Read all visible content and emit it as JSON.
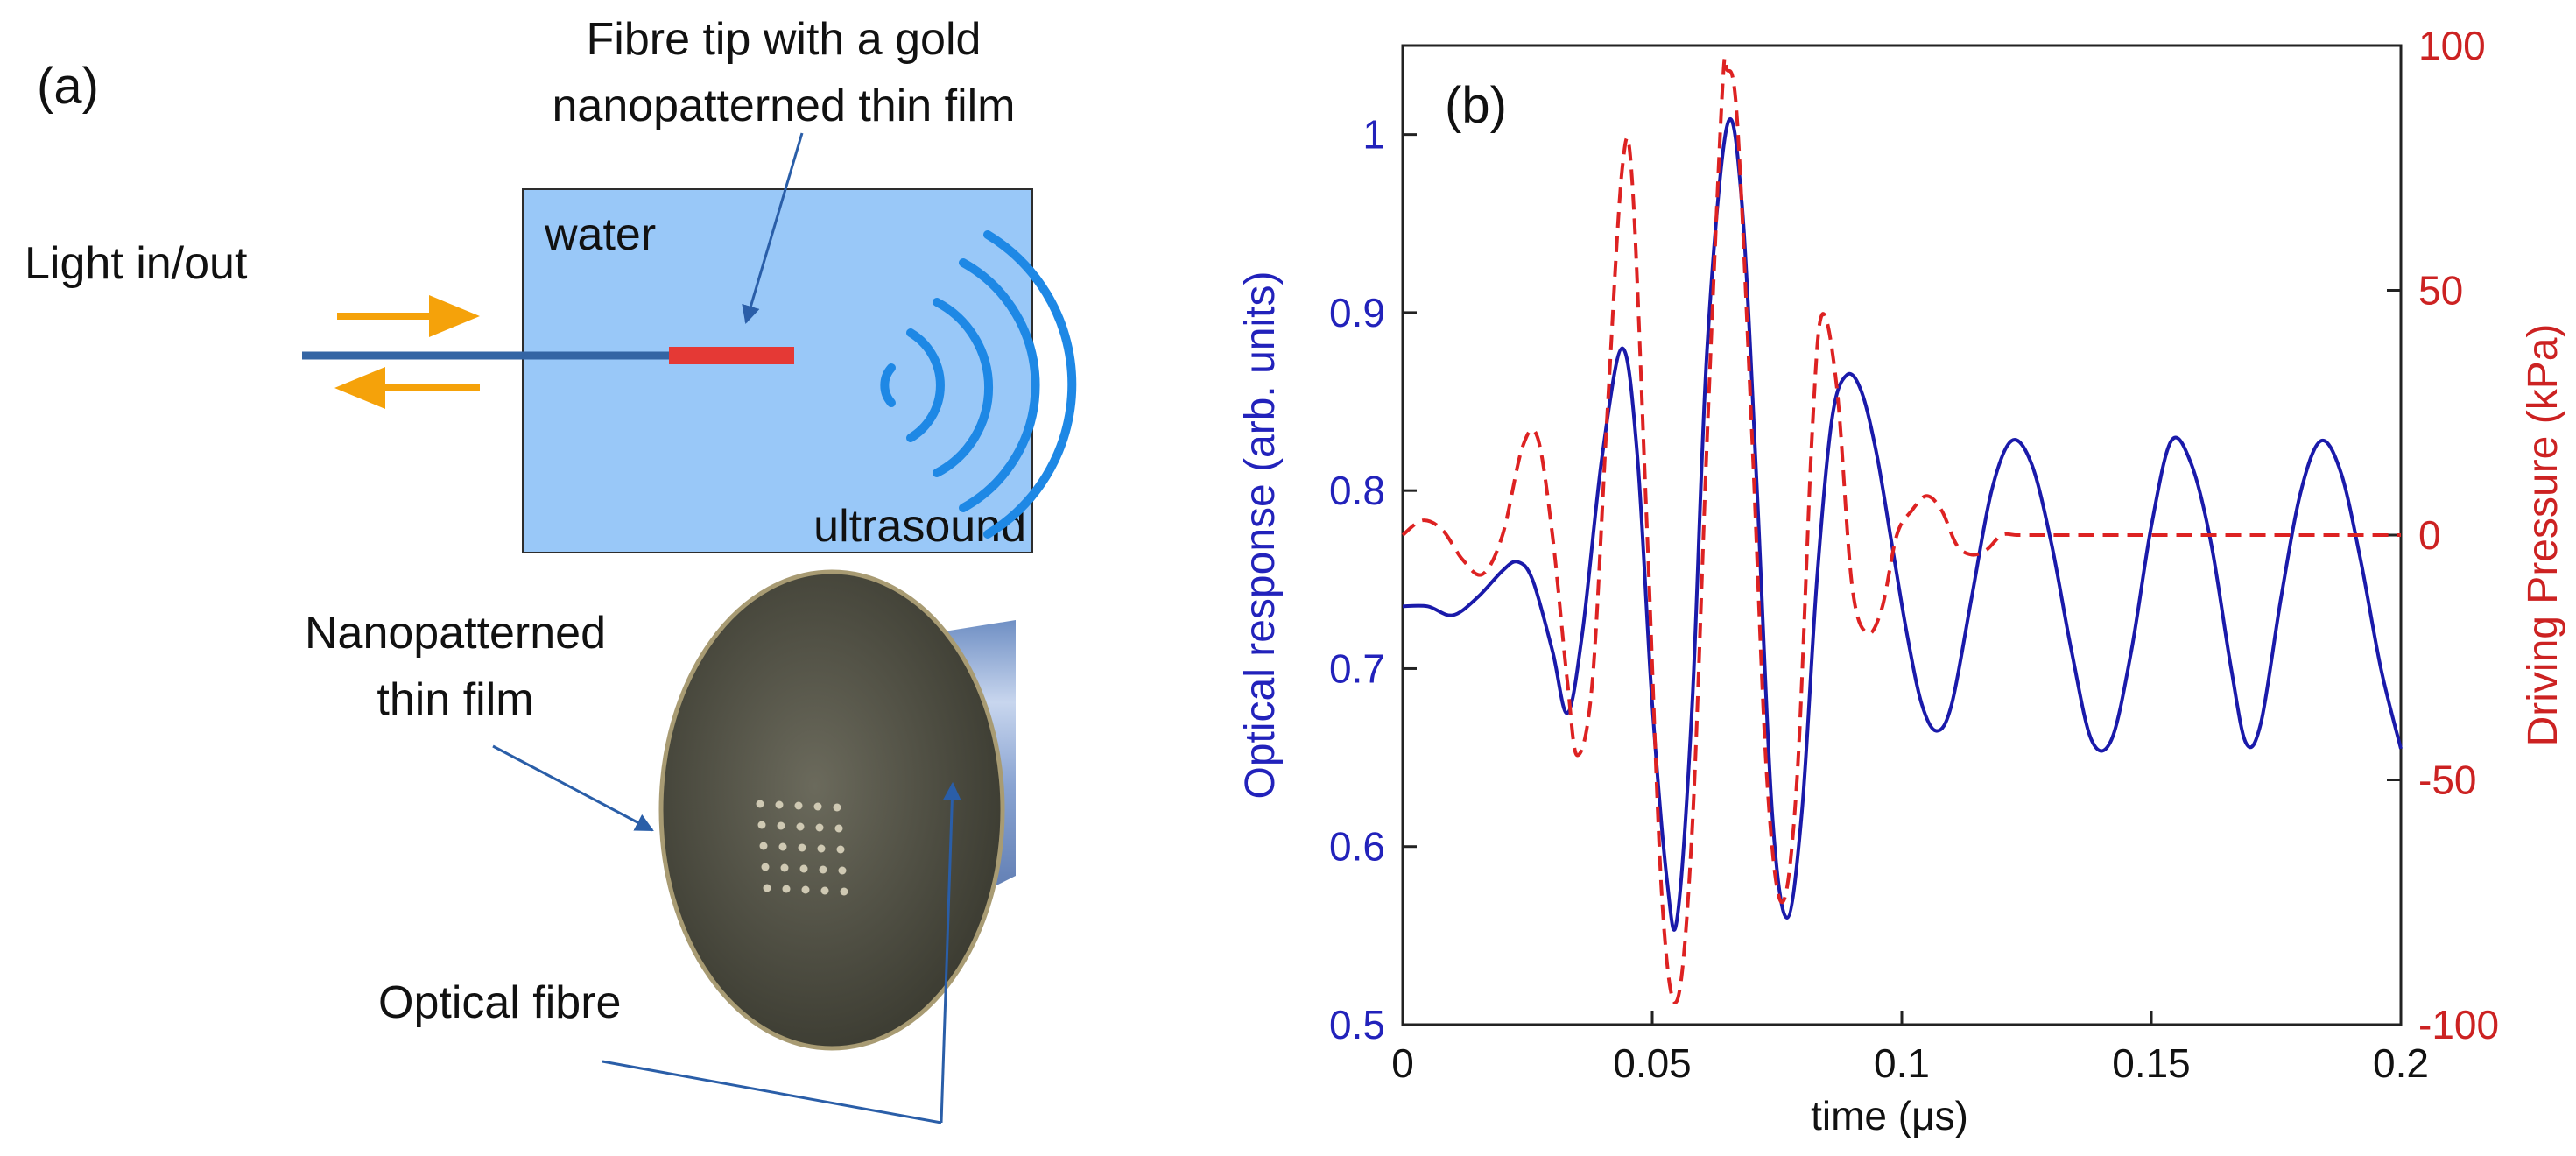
{
  "panel_a": {
    "label": "(a)",
    "top_label_line1": "Fibre tip with a gold",
    "top_label_line2": "nanopatterned thin film",
    "light_label": "Light in/out",
    "water_label": "water",
    "ultrasound_label": "ultrasound",
    "film_label_line1": "Nanopatterned",
    "film_label_line2": "thin film",
    "fibre_label": "Optical fibre",
    "colors": {
      "water": "#99c8f8",
      "fibre_core": "#3465a4",
      "gold_film": "#e53935",
      "arrows": "#f5a20a",
      "waves": "#1e88e5",
      "pointer": "#2a5ea8"
    }
  },
  "panel_b": {
    "label": "(b)",
    "colors": {
      "left_axis": "#2222bb",
      "right_axis": "#cc2222"
    }
  },
  "chart_data": {
    "type": "line",
    "title": "",
    "xlabel": "time (μs)",
    "ylabel": "Optical response (arb. units)",
    "ylabel_right": "Driving Pressure (kPa)",
    "xlim": [
      0,
      0.2
    ],
    "ylim": [
      0.5,
      1.05
    ],
    "ylim_right": [
      -100,
      100
    ],
    "x_ticks": [
      "0",
      "0.05",
      "0.1",
      "0.15",
      "0.2"
    ],
    "y_ticks": [
      "0.5",
      "0.6",
      "0.7",
      "0.8",
      "0.9",
      "1"
    ],
    "y_ticks_right": [
      "-100",
      "-50",
      "0",
      "50",
      "100"
    ],
    "grid": false,
    "series": [
      {
        "name": "Optical response",
        "axis": "left",
        "style": "solid",
        "color": "#1a1aaa",
        "x": [
          0,
          0.005,
          0.01,
          0.015,
          0.02,
          0.023,
          0.026,
          0.03,
          0.033,
          0.036,
          0.04,
          0.044,
          0.047,
          0.05,
          0.053,
          0.055,
          0.058,
          0.061,
          0.065,
          0.068,
          0.071,
          0.074,
          0.077,
          0.08,
          0.083,
          0.086,
          0.089,
          0.092,
          0.095,
          0.098,
          0.101,
          0.104,
          0.107,
          0.11,
          0.114,
          0.118,
          0.122,
          0.126,
          0.13,
          0.134,
          0.138,
          0.142,
          0.146,
          0.15,
          0.154,
          0.158,
          0.162,
          0.166,
          0.169,
          0.172,
          0.176,
          0.18,
          0.184,
          0.188,
          0.192,
          0.196,
          0.2
        ],
        "y": [
          0.735,
          0.735,
          0.73,
          0.74,
          0.755,
          0.76,
          0.75,
          0.71,
          0.675,
          0.72,
          0.82,
          0.88,
          0.82,
          0.68,
          0.58,
          0.56,
          0.68,
          0.88,
          1.005,
          0.96,
          0.8,
          0.62,
          0.56,
          0.62,
          0.75,
          0.84,
          0.865,
          0.855,
          0.82,
          0.77,
          0.72,
          0.68,
          0.665,
          0.68,
          0.74,
          0.8,
          0.828,
          0.815,
          0.77,
          0.71,
          0.66,
          0.66,
          0.71,
          0.78,
          0.828,
          0.815,
          0.77,
          0.7,
          0.658,
          0.67,
          0.74,
          0.8,
          0.828,
          0.81,
          0.76,
          0.7,
          0.655
        ]
      },
      {
        "name": "Driving Pressure",
        "axis": "right",
        "style": "dashed",
        "color": "#dd2222",
        "x": [
          0,
          0.004,
          0.008,
          0.012,
          0.016,
          0.02,
          0.024,
          0.027,
          0.03,
          0.033,
          0.035,
          0.038,
          0.041,
          0.044,
          0.046,
          0.049,
          0.052,
          0.055,
          0.058,
          0.061,
          0.064,
          0.065,
          0.067,
          0.07,
          0.073,
          0.076,
          0.079,
          0.082,
          0.084,
          0.087,
          0.09,
          0.093,
          0.096,
          0.099,
          0.102,
          0.105,
          0.108,
          0.111,
          0.114,
          0.117,
          0.12,
          0.123,
          0.127,
          0.13,
          0.14,
          0.15,
          0.16,
          0.17,
          0.18,
          0.19,
          0.2
        ],
        "y": [
          0,
          3,
          1,
          -5,
          -8,
          0,
          18,
          20,
          0,
          -30,
          -45,
          -30,
          25,
          75,
          72,
          0,
          -75,
          -95,
          -60,
          20,
          90,
          95,
          85,
          20,
          -50,
          -75,
          -50,
          20,
          45,
          30,
          -10,
          -20,
          -15,
          0,
          5,
          8,
          5,
          -2,
          -4,
          -3,
          0,
          0,
          0,
          0,
          0,
          0,
          0,
          0,
          0,
          0,
          0
        ]
      }
    ]
  }
}
